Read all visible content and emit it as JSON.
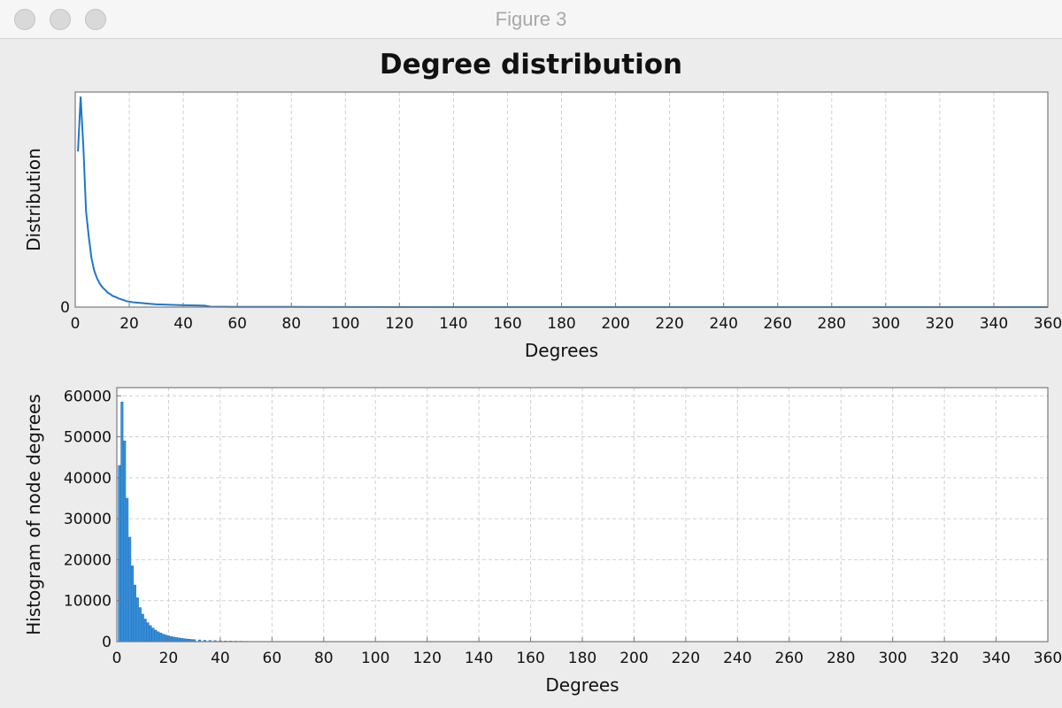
{
  "window": {
    "title": "Figure 3",
    "traffic_lights": [
      "close-button",
      "minimize-button",
      "zoom-button"
    ]
  },
  "figure": {
    "title": "Degree distribution"
  },
  "colors": {
    "series": "#1f77c9",
    "bar_fill": "#3a8fd6",
    "grid": "#cfcfcf",
    "axes": "#7a7a7a"
  },
  "chart_data": [
    {
      "type": "line",
      "title": "",
      "xlabel": "Degrees",
      "ylabel": "Distribution",
      "xlim": [
        0,
        360
      ],
      "ylim": [
        0,
        0.235
      ],
      "x_ticks": [
        0,
        20,
        40,
        60,
        80,
        100,
        120,
        140,
        160,
        180,
        200,
        220,
        240,
        260,
        280,
        300,
        320,
        340,
        360
      ],
      "y_ticks": [
        0
      ],
      "grid": true,
      "series": [
        {
          "x": [
            1,
            2,
            3,
            4,
            5,
            6,
            7,
            8,
            9,
            10,
            11,
            12,
            13,
            14,
            15,
            16,
            17,
            18,
            19,
            20,
            22,
            24,
            26,
            28,
            30,
            35,
            40,
            45,
            48,
            50,
            60,
            80,
            100,
            150,
            200,
            250,
            300,
            360
          ],
          "y": [
            0.17,
            0.23,
            0.175,
            0.105,
            0.077,
            0.054,
            0.04,
            0.032,
            0.026,
            0.022,
            0.019,
            0.016,
            0.014,
            0.012,
            0.011,
            0.0095,
            0.0085,
            0.0075,
            0.0065,
            0.006,
            0.005,
            0.0045,
            0.004,
            0.0035,
            0.003,
            0.0025,
            0.002,
            0.0018,
            0.0015,
            0.0005,
            0.0003,
            0.0002,
            0.0001,
            0,
            0,
            0,
            0,
            0
          ]
        }
      ]
    },
    {
      "type": "bar",
      "title": "",
      "xlabel": "Degrees",
      "ylabel": "Histogram of node degrees",
      "xlim": [
        0,
        360
      ],
      "ylim": [
        0,
        62000
      ],
      "x_ticks": [
        0,
        20,
        40,
        60,
        80,
        100,
        120,
        140,
        160,
        180,
        200,
        220,
        240,
        260,
        280,
        300,
        320,
        340,
        360
      ],
      "y_ticks": [
        0,
        10000,
        20000,
        30000,
        40000,
        50000,
        60000
      ],
      "grid": true,
      "series": [
        {
          "x": [
            1,
            2,
            3,
            4,
            5,
            6,
            7,
            8,
            9,
            10,
            11,
            12,
            13,
            14,
            15,
            16,
            17,
            18,
            19,
            20,
            21,
            22,
            23,
            24,
            25,
            26,
            27,
            28,
            29,
            30,
            32,
            34,
            36,
            38,
            40,
            42,
            44,
            46,
            48,
            50
          ],
          "y": [
            43000,
            58500,
            49000,
            35000,
            25500,
            18500,
            13800,
            10700,
            8300,
            6700,
            5500,
            4600,
            3900,
            3300,
            2800,
            2400,
            2100,
            1800,
            1600,
            1400,
            1250,
            1100,
            1000,
            900,
            800,
            720,
            650,
            580,
            520,
            470,
            400,
            330,
            280,
            230,
            190,
            160,
            130,
            110,
            90,
            70
          ]
        }
      ]
    }
  ]
}
